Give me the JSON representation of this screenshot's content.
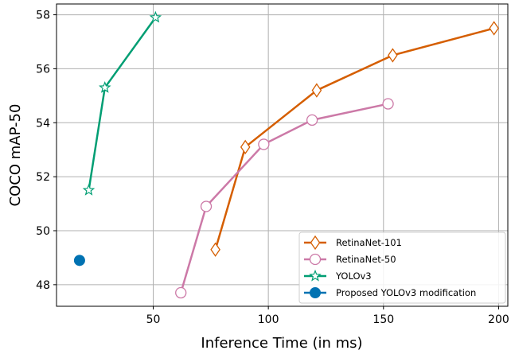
{
  "chart_data": {
    "type": "line",
    "xlabel": "Inference Time (in ms)",
    "ylabel": "COCO mAP-50",
    "xlim": [
      8,
      204
    ],
    "ylim": [
      47.2,
      58.4
    ],
    "xticks": [
      50,
      100,
      150,
      200
    ],
    "yticks": [
      48,
      50,
      52,
      54,
      56,
      58
    ],
    "grid": true,
    "legend_position": "lower-right",
    "series": [
      {
        "name": "RetinaNet-101",
        "color": "#d55e00",
        "marker": "diamond",
        "x": [
          77,
          90,
          121,
          154,
          198
        ],
        "y": [
          49.3,
          53.1,
          55.2,
          56.5,
          57.5
        ]
      },
      {
        "name": "RetinaNet-50",
        "color": "#cc79a7",
        "marker": "circle-open",
        "x": [
          62,
          73,
          98,
          119,
          152
        ],
        "y": [
          47.7,
          50.9,
          53.2,
          54.1,
          54.7
        ]
      },
      {
        "name": "YOLOv3",
        "color": "#009e73",
        "marker": "star",
        "x": [
          22,
          29,
          51
        ],
        "y": [
          51.5,
          55.3,
          57.9
        ]
      },
      {
        "name": "Proposed YOLOv3 modification",
        "color": "#0072b2",
        "marker": "circle-filled",
        "x": [
          18
        ],
        "y": [
          48.9
        ]
      }
    ]
  }
}
